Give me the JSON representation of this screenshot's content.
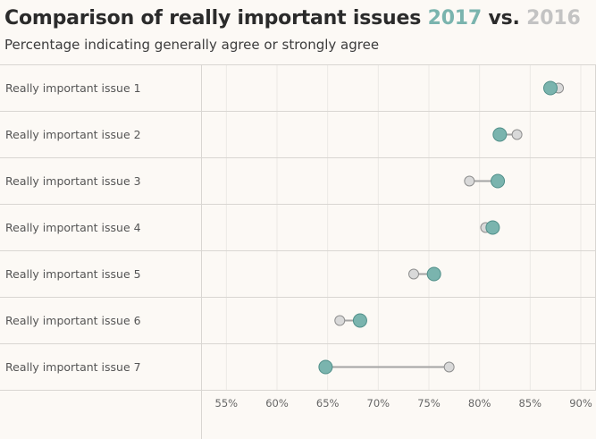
{
  "header": {
    "title_prefix": "Comparison of really important issues ",
    "title_2017": "2017",
    "title_vs": " vs. ",
    "title_2016": "2016",
    "subtitle": "Percentage indicating generally agree or strongly agree"
  },
  "colors": {
    "teal": "#7ab4ae",
    "teal_stroke": "#4f8e88",
    "gray": "#d9d9d9",
    "gray_stroke": "#8f8f8f",
    "connector": "#a4a4a4",
    "grid": "#d9d6d2",
    "title_2016": "#c3c3c3"
  },
  "chart_data": {
    "type": "dumbbell",
    "title": "Comparison of really important issues 2017 vs. 2016",
    "subtitle": "Percentage indicating generally agree or strongly agree",
    "xlabel": "",
    "ylabel": "",
    "xlim": [
      52.5,
      91.5
    ],
    "x_ticks": [
      55,
      60,
      65,
      70,
      75,
      80,
      85,
      90
    ],
    "x_tick_labels": [
      "55%",
      "60%",
      "65%",
      "70%",
      "75%",
      "80%",
      "85%",
      "90%"
    ],
    "categories": [
      "Really important issue 1",
      "Really important issue 2",
      "Really important issue 3",
      "Really important issue 4",
      "Really important issue 5",
      "Really important issue 6",
      "Really important issue 7"
    ],
    "series": [
      {
        "name": "2017",
        "color": "#7ab4ae",
        "values": [
          87.0,
          82.0,
          81.8,
          81.3,
          75.5,
          68.2,
          64.8
        ]
      },
      {
        "name": "2016",
        "color": "#d9d9d9",
        "values": [
          87.8,
          83.7,
          79.0,
          80.6,
          73.5,
          66.2,
          77.0
        ]
      }
    ],
    "grid": true
  }
}
